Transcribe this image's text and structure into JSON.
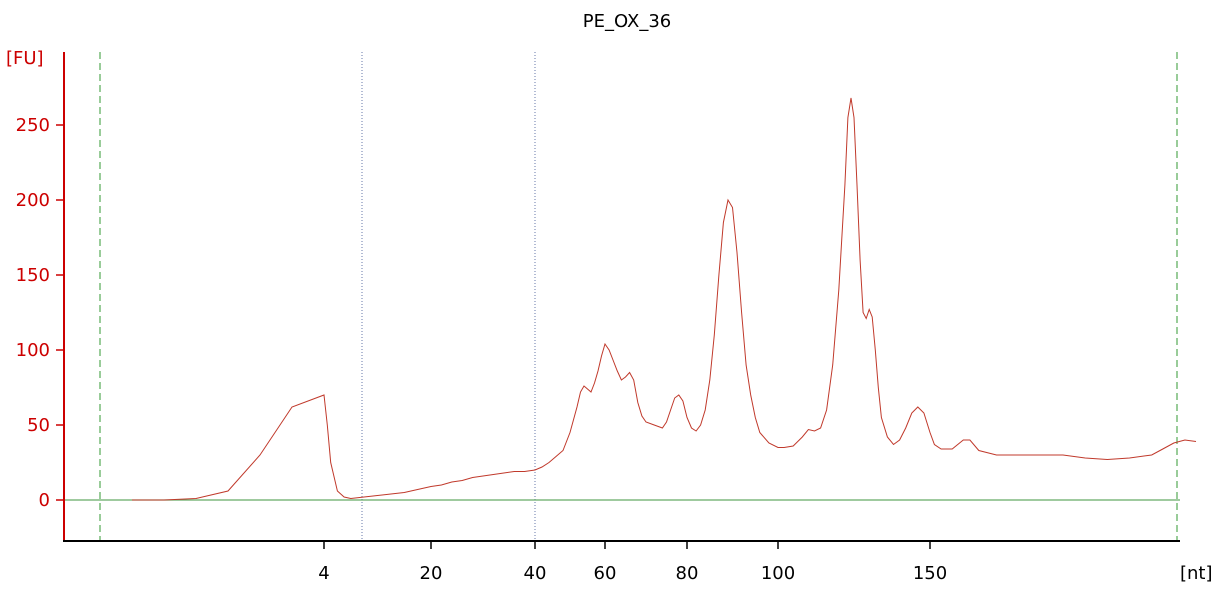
{
  "chart_data": {
    "type": "line",
    "title": "PE_OX_36",
    "ylabel": "[FU]",
    "xlabel": "[nt]",
    "ylim": [
      -27,
      300
    ],
    "y_ticks": [
      0,
      50,
      100,
      150,
      200,
      250
    ],
    "x_ticks": [
      "4",
      "20",
      "40",
      "60",
      "80",
      "100",
      "150"
    ],
    "colors": {
      "trace": "#c0392b",
      "axis": "#cc0000",
      "baseline": "#66aa66",
      "markers": "#339933",
      "dividers": "#6677aa"
    },
    "grid": false,
    "series": [
      {
        "values": [
          [
            1,
            0
          ],
          [
            1.5,
            0
          ],
          [
            2,
            1
          ],
          [
            2.5,
            6
          ],
          [
            3,
            30
          ],
          [
            3.5,
            62
          ],
          [
            4,
            70
          ],
          [
            4.5,
            50
          ],
          [
            5,
            25
          ],
          [
            6,
            6
          ],
          [
            7,
            2
          ],
          [
            8,
            1
          ],
          [
            10,
            2
          ],
          [
            12,
            3
          ],
          [
            14,
            4
          ],
          [
            16,
            5
          ],
          [
            18,
            7
          ],
          [
            20,
            9
          ],
          [
            22,
            10
          ],
          [
            24,
            12
          ],
          [
            26,
            13
          ],
          [
            28,
            15
          ],
          [
            30,
            16
          ],
          [
            32,
            17
          ],
          [
            34,
            18
          ],
          [
            36,
            19
          ],
          [
            38,
            19
          ],
          [
            40,
            20
          ],
          [
            42,
            22
          ],
          [
            44,
            25
          ],
          [
            46,
            29
          ],
          [
            48,
            33
          ],
          [
            50,
            45
          ],
          [
            52,
            62
          ],
          [
            53,
            72
          ],
          [
            54,
            76
          ],
          [
            55,
            74
          ],
          [
            56,
            72
          ],
          [
            57,
            78
          ],
          [
            58,
            86
          ],
          [
            59,
            96
          ],
          [
            60,
            104
          ],
          [
            61,
            100
          ],
          [
            62,
            93
          ],
          [
            63,
            86
          ],
          [
            64,
            80
          ],
          [
            65,
            82
          ],
          [
            66,
            85
          ],
          [
            67,
            80
          ],
          [
            68,
            65
          ],
          [
            69,
            56
          ],
          [
            70,
            52
          ],
          [
            72,
            50
          ],
          [
            74,
            48
          ],
          [
            75,
            52
          ],
          [
            76,
            60
          ],
          [
            77,
            68
          ],
          [
            78,
            70
          ],
          [
            79,
            66
          ],
          [
            80,
            55
          ],
          [
            81,
            48
          ],
          [
            82,
            46
          ],
          [
            83,
            50
          ],
          [
            84,
            60
          ],
          [
            85,
            80
          ],
          [
            86,
            110
          ],
          [
            87,
            150
          ],
          [
            88,
            185
          ],
          [
            89,
            200
          ],
          [
            90,
            195
          ],
          [
            91,
            165
          ],
          [
            92,
            125
          ],
          [
            93,
            90
          ],
          [
            94,
            70
          ],
          [
            95,
            55
          ],
          [
            96,
            45
          ],
          [
            98,
            38
          ],
          [
            100,
            35
          ],
          [
            102,
            35
          ],
          [
            105,
            36
          ],
          [
            108,
            42
          ],
          [
            110,
            47
          ],
          [
            112,
            46
          ],
          [
            114,
            48
          ],
          [
            116,
            60
          ],
          [
            118,
            90
          ],
          [
            120,
            140
          ],
          [
            122,
            210
          ],
          [
            123,
            255
          ],
          [
            124,
            268
          ],
          [
            125,
            255
          ],
          [
            126,
            210
          ],
          [
            127,
            160
          ],
          [
            128,
            125
          ],
          [
            129,
            121
          ],
          [
            130,
            127
          ],
          [
            131,
            122
          ],
          [
            132,
            100
          ],
          [
            133,
            75
          ],
          [
            134,
            55
          ],
          [
            136,
            42
          ],
          [
            138,
            37
          ],
          [
            140,
            40
          ],
          [
            142,
            48
          ],
          [
            144,
            58
          ],
          [
            146,
            62
          ],
          [
            148,
            58
          ],
          [
            150,
            45
          ],
          [
            152,
            37
          ],
          [
            155,
            34
          ],
          [
            160,
            34
          ],
          [
            165,
            40
          ],
          [
            168,
            40
          ],
          [
            172,
            33
          ],
          [
            180,
            30
          ],
          [
            200,
            30
          ],
          [
            210,
            30
          ],
          [
            220,
            28
          ],
          [
            230,
            27
          ],
          [
            240,
            28
          ],
          [
            250,
            30
          ],
          [
            255,
            34
          ],
          [
            260,
            38
          ],
          [
            265,
            40
          ],
          [
            270,
            39
          ]
        ]
      }
    ]
  }
}
